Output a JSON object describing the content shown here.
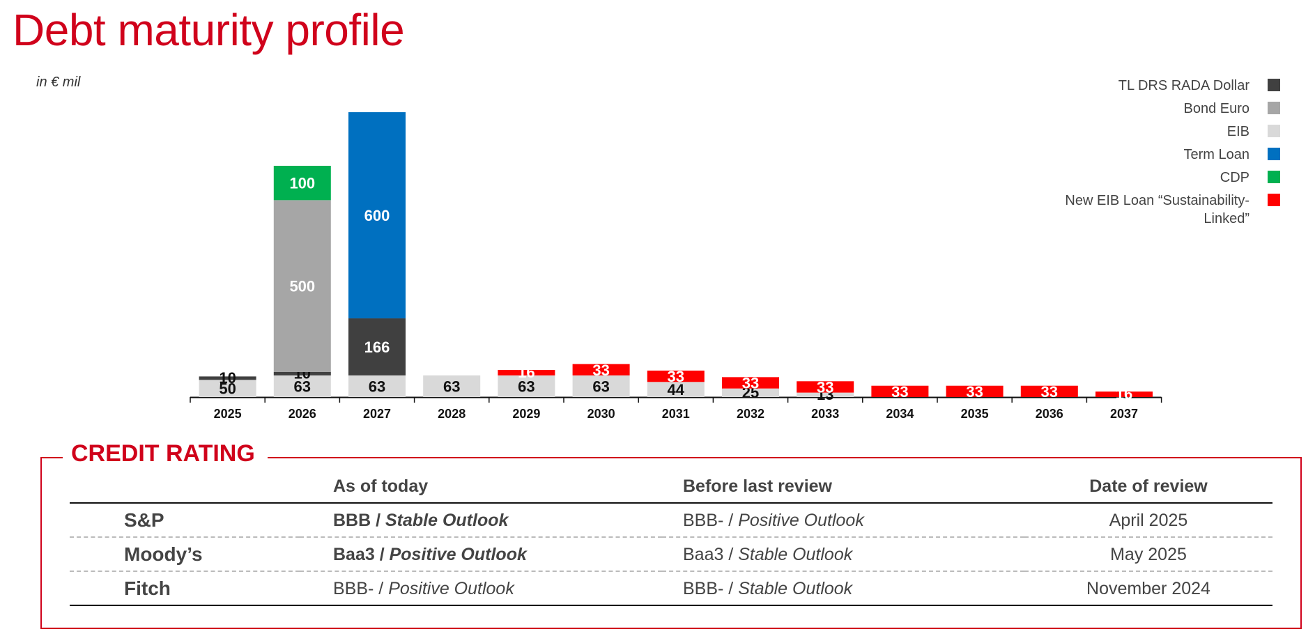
{
  "page": {
    "title": "Debt maturity profile",
    "unit_label": "in € mil"
  },
  "chart_data": {
    "type": "bar",
    "stacked": true,
    "categories": [
      "2025",
      "2026",
      "2027",
      "2028",
      "2029",
      "2030",
      "2031",
      "2032",
      "2033",
      "2034",
      "2035",
      "2036",
      "2037"
    ],
    "series": [
      {
        "name": "EIB",
        "color": "#d9d9d9",
        "label_color": "#111111",
        "values": [
          50,
          63,
          63,
          63,
          63,
          63,
          44,
          25,
          13,
          0,
          0,
          0,
          0
        ]
      },
      {
        "name": "TL DRS RADA Dollar",
        "color": "#404040",
        "label_color": "#ffffff",
        "values": [
          10,
          10,
          166,
          0,
          0,
          0,
          0,
          0,
          0,
          0,
          0,
          0,
          0
        ]
      },
      {
        "name": "Bond Euro",
        "color": "#a6a6a6",
        "label_color": "#ffffff",
        "values": [
          0,
          500,
          0,
          0,
          0,
          0,
          0,
          0,
          0,
          0,
          0,
          0,
          0
        ]
      },
      {
        "name": "Term Loan",
        "color": "#0070c0",
        "label_color": "#ffffff",
        "values": [
          0,
          0,
          600,
          0,
          0,
          0,
          0,
          0,
          0,
          0,
          0,
          0,
          0
        ]
      },
      {
        "name": "CDP",
        "color": "#00b050",
        "label_color": "#ffffff",
        "values": [
          0,
          100,
          0,
          0,
          0,
          0,
          0,
          0,
          0,
          0,
          0,
          0,
          0
        ]
      },
      {
        "name": "New EIB Loan “Sustainability-Linked”",
        "color": "#ff0000",
        "label_color": "#ffffff",
        "values": [
          0,
          0,
          0,
          0,
          16,
          33,
          33,
          33,
          33,
          33,
          33,
          33,
          16
        ]
      }
    ],
    "legend_order": [
      "TL DRS RADA Dollar",
      "Bond Euro",
      "EIB",
      "Term Loan",
      "CDP",
      "New EIB Loan “Sustainability-Linked”"
    ],
    "legend_position": "top-right",
    "ylim": [
      0,
      900
    ],
    "grid": false
  },
  "rating": {
    "title": "CREDIT RATING",
    "headers": [
      "",
      "As of today",
      "Before last review",
      "Date of review"
    ],
    "rows": [
      {
        "agency": "S&P",
        "now_grade": "BBB",
        "now_outlook": "Stable Outlook",
        "now_bold": true,
        "before_grade": "BBB-",
        "before_outlook": "Positive Outlook",
        "date": "April 2025"
      },
      {
        "agency": "Moody’s",
        "now_grade": "Baa3",
        "now_outlook": "Positive Outlook",
        "now_bold": true,
        "before_grade": "Baa3",
        "before_outlook": "Stable Outlook",
        "date": "May 2025"
      },
      {
        "agency": "Fitch",
        "now_grade": "BBB-",
        "now_outlook": "Positive Outlook",
        "now_bold": false,
        "before_grade": "BBB-",
        "before_outlook": "Stable Outlook",
        "date": "November 2024"
      }
    ],
    "separator": " / "
  }
}
